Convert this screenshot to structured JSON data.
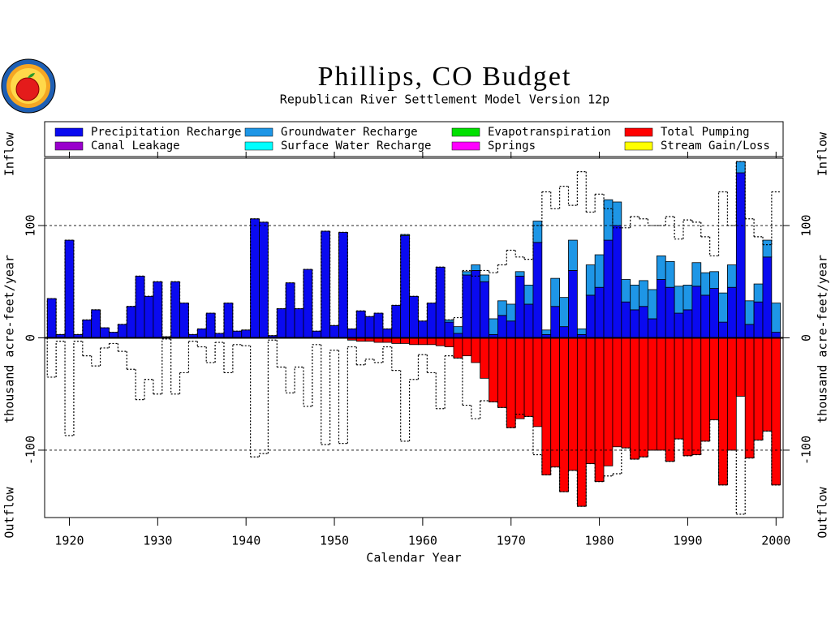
{
  "chart_data": {
    "type": "bar",
    "title": "Phillips, CO Budget",
    "subtitle": "Republican River Settlement Model Version 12p",
    "x_label": "Calendar Year",
    "y_label": "thousand acre-feet/year",
    "y_top_label": "Inflow",
    "y_bottom_label": "Outflow",
    "x": [
      1918,
      1919,
      1920,
      1921,
      1922,
      1923,
      1924,
      1925,
      1926,
      1927,
      1928,
      1929,
      1930,
      1931,
      1932,
      1933,
      1934,
      1935,
      1936,
      1937,
      1938,
      1939,
      1940,
      1941,
      1942,
      1943,
      1944,
      1945,
      1946,
      1947,
      1948,
      1949,
      1950,
      1951,
      1952,
      1953,
      1954,
      1955,
      1956,
      1957,
      1958,
      1959,
      1960,
      1961,
      1962,
      1963,
      1964,
      1965,
      1966,
      1967,
      1968,
      1969,
      1970,
      1971,
      1972,
      1973,
      1974,
      1975,
      1976,
      1977,
      1978,
      1979,
      1980,
      1981,
      1982,
      1983,
      1984,
      1985,
      1986,
      1987,
      1988,
      1989,
      1990,
      1991,
      1992,
      1993,
      1994,
      1995,
      1996,
      1997,
      1998,
      1999,
      2000
    ],
    "series": [
      {
        "name": "Precipitation Recharge",
        "color": "#0a0af0",
        "stack": "in",
        "values": [
          35,
          3,
          87,
          3,
          16,
          25,
          9,
          5,
          12,
          28,
          55,
          37,
          50,
          1,
          50,
          31,
          3,
          8,
          22,
          4,
          31,
          6,
          7,
          106,
          103,
          2,
          26,
          49,
          26,
          61,
          6,
          95,
          11,
          94,
          8,
          24,
          19,
          22,
          8,
          29,
          91,
          37,
          15,
          31,
          63,
          14,
          4,
          56,
          60,
          50,
          3,
          20,
          15,
          55,
          30,
          85,
          3,
          28,
          10,
          60,
          3,
          38,
          45,
          87,
          100,
          32,
          25,
          28,
          17,
          52,
          45,
          22,
          25,
          46,
          38,
          44,
          14,
          45,
          147,
          12,
          32,
          72,
          5
        ]
      },
      {
        "name": "Groundwater Recharge",
        "color": "#1e96e6",
        "stack": "in",
        "values": [
          0,
          0,
          0,
          0,
          0,
          0,
          0,
          0,
          0,
          0,
          0,
          0,
          0,
          0,
          0,
          0,
          0,
          0,
          0,
          0,
          0,
          0,
          0,
          0,
          0,
          0,
          0,
          0,
          0,
          0,
          0,
          0,
          0,
          0,
          0,
          0,
          0,
          0,
          0,
          0,
          1,
          0,
          0,
          0,
          0,
          2,
          6,
          3,
          5,
          6,
          14,
          13,
          15,
          4,
          17,
          19,
          4,
          25,
          26,
          27,
          5,
          27,
          29,
          36,
          21,
          20,
          22,
          23,
          26,
          21,
          23,
          24,
          22,
          21,
          20,
          15,
          26,
          20,
          10,
          21,
          16,
          15,
          26
        ]
      },
      {
        "name": "Evapotranspiration",
        "color": "#00e000"
      },
      {
        "name": "Total Pumping",
        "color": "#ff0000",
        "stack": "out",
        "values": [
          0,
          0,
          0,
          0,
          0,
          0,
          0,
          0,
          0,
          0,
          0,
          0,
          0,
          0,
          0,
          0,
          0,
          0,
          0,
          0,
          0,
          0,
          0,
          0,
          0,
          0,
          0,
          0,
          0,
          0,
          0,
          0,
          0,
          0,
          -2,
          -3,
          -3,
          -4,
          -4,
          -5,
          -5,
          -6,
          -6,
          -6,
          -7,
          -8,
          -18,
          -16,
          -22,
          -36,
          -57,
          -62,
          -80,
          -72,
          -70,
          -79,
          -122,
          -115,
          -137,
          -118,
          -150,
          -112,
          -128,
          -114,
          -97,
          -98,
          -108,
          -106,
          -100,
          -100,
          -110,
          -90,
          -105,
          -104,
          -92,
          -73,
          -131,
          -100,
          -52,
          -107,
          -91,
          -83,
          -131
        ]
      },
      {
        "name": "Canal Leakage",
        "color": "#9900cc"
      },
      {
        "name": "Surface Water Recharge",
        "color": "#00ffff"
      },
      {
        "name": "Springs",
        "color": "#ff00ff"
      },
      {
        "name": "Stream Gain/Loss",
        "color": "#ffff00"
      }
    ],
    "dotted_lines": [
      {
        "color": "#000000",
        "values": [
          35,
          3,
          87,
          3,
          16,
          25,
          9,
          5,
          12,
          28,
          55,
          37,
          50,
          1,
          50,
          31,
          3,
          8,
          22,
          4,
          31,
          6,
          7,
          106,
          103,
          2,
          26,
          49,
          26,
          61,
          6,
          95,
          11,
          94,
          8,
          24,
          19,
          22,
          8,
          29,
          92,
          37,
          15,
          31,
          63,
          16,
          18,
          60,
          55,
          60,
          58,
          65,
          78,
          72,
          70,
          100,
          130,
          115,
          135,
          118,
          148,
          112,
          128,
          115,
          98,
          98,
          108,
          106,
          100,
          100,
          108,
          88,
          105,
          103,
          90,
          73,
          130,
          100,
          157,
          106,
          90,
          83,
          130
        ]
      },
      {
        "color": "#000000",
        "values": [
          -35,
          -3,
          -87,
          -3,
          -16,
          -25,
          -9,
          -5,
          -12,
          -28,
          -55,
          -37,
          -50,
          -1,
          -50,
          -31,
          -3,
          -8,
          -22,
          -4,
          -31,
          -6,
          -7,
          -106,
          -103,
          -2,
          -26,
          -49,
          -26,
          -61,
          -6,
          -95,
          -11,
          -94,
          -8,
          -24,
          -19,
          -22,
          -8,
          -29,
          -92,
          -37,
          -15,
          -31,
          -63,
          -16,
          -18,
          -60,
          -72,
          -56,
          -57,
          -62,
          -80,
          -68,
          -70,
          -104,
          -122,
          -115,
          -137,
          -118,
          -150,
          -112,
          -128,
          -123,
          -121,
          -98,
          -108,
          -106,
          -100,
          -100,
          -110,
          -90,
          -105,
          -104,
          -92,
          -73,
          -131,
          -100,
          -157,
          -107,
          -91,
          -83,
          -131
        ]
      }
    ],
    "xlim": [
      1917.2,
      2000.8
    ],
    "xticks": [
      1920,
      1930,
      1940,
      1950,
      1960,
      1970,
      1980,
      1990,
      2000
    ],
    "ylim": [
      -160,
      160
    ],
    "yticks": [
      -100,
      0,
      100
    ],
    "grid": true
  }
}
